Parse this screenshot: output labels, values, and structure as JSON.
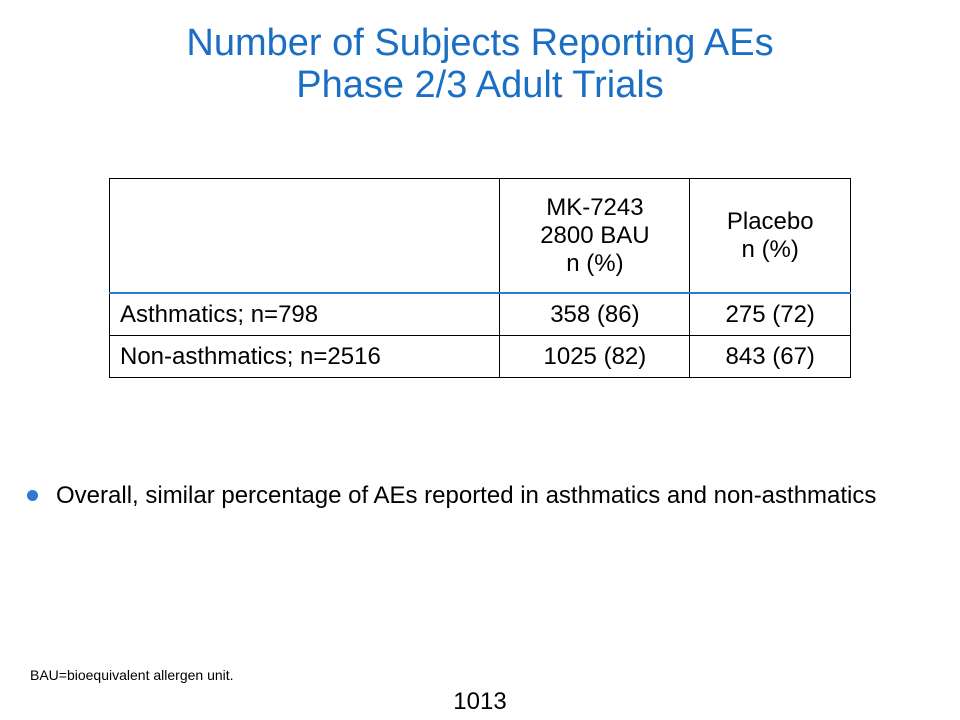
{
  "slide": {
    "title_line1": "Number of Subjects Reporting AEs",
    "title_line2": "Phase 2/3 Adult Trials",
    "title_color": "#1a6fc4",
    "accent_color": "#2a7bd0"
  },
  "table": {
    "header": {
      "col1": "",
      "col2_line1": "MK-7243",
      "col2_line2": "2800 BAU",
      "col2_line3": "n (%)",
      "col3_line1": "Placebo",
      "col3_line2": "n (%)"
    },
    "rows": [
      {
        "label": "Asthmatics; n=798",
        "mk7243": "358 (86)",
        "placebo": "275 (72)"
      },
      {
        "label": "Non-asthmatics; n=2516",
        "mk7243": "1025 (82)",
        "placebo": "843 (67)"
      }
    ]
  },
  "bullets": [
    {
      "text": "Overall, similar percentage of AEs reported in asthmatics and non-asthmatics"
    }
  ],
  "footnote": "BAU=bioequivalent allergen unit.",
  "page_number": "1013"
}
